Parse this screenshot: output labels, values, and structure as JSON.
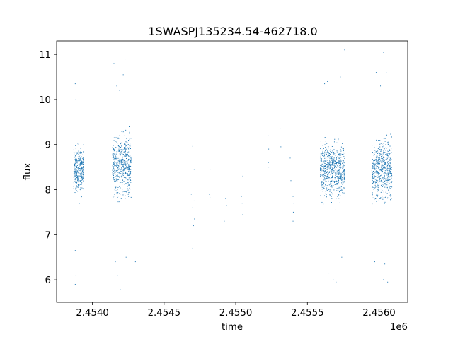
{
  "chart_data": {
    "type": "scatter",
    "title": "1SWASPJ135234.54-462718.0",
    "xlabel": "time",
    "ylabel": "flux",
    "x_offset_label": "1e6",
    "xlim": [
      2453750,
      2456200
    ],
    "ylim": [
      5.5,
      11.3
    ],
    "x_ticks": [
      2454000,
      2454500,
      2455000,
      2455500,
      2456000
    ],
    "x_tick_labels": [
      "2.4540",
      "2.4545",
      "2.4550",
      "2.4555",
      "2.4560"
    ],
    "y_ticks": [
      6,
      7,
      8,
      9,
      10,
      11
    ],
    "y_tick_labels": [
      "6",
      "7",
      "8",
      "9",
      "10",
      "11"
    ],
    "grid": false,
    "color": "#1f77b4",
    "series": [
      {
        "clusters": [
          {
            "x_range": [
              2453870,
              2453940
            ],
            "y_center": 8.45,
            "y_spread": 0.35,
            "count": 330
          },
          {
            "x_range": [
              2454140,
              2454270
            ],
            "y_center": 8.55,
            "y_spread": 0.45,
            "count": 520
          },
          {
            "x_range": [
              2455590,
              2455760
            ],
            "y_center": 8.45,
            "y_spread": 0.4,
            "count": 650
          },
          {
            "x_range": [
              2455950,
              2456090
            ],
            "y_center": 8.45,
            "y_spread": 0.42,
            "count": 560
          }
        ],
        "sparse_points": [
          [
            2454700,
            8.96
          ],
          [
            2454710,
            8.45
          ],
          [
            2454690,
            7.9
          ],
          [
            2454710,
            7.75
          ],
          [
            2454700,
            7.6
          ],
          [
            2454712,
            7.35
          ],
          [
            2454705,
            7.2
          ],
          [
            2454700,
            6.7
          ],
          [
            2454820,
            8.45
          ],
          [
            2454815,
            7.9
          ],
          [
            2454820,
            7.82
          ],
          [
            2454930,
            7.8
          ],
          [
            2454935,
            7.65
          ],
          [
            2454920,
            7.3
          ],
          [
            2455040,
            7.85
          ],
          [
            2455045,
            7.7
          ],
          [
            2455050,
            7.45
          ],
          [
            2455050,
            8.3
          ],
          [
            2455225,
            9.2
          ],
          [
            2455230,
            8.9
          ],
          [
            2455228,
            8.6
          ],
          [
            2455230,
            8.5
          ],
          [
            2455310,
            9.35
          ],
          [
            2455315,
            8.95
          ],
          [
            2455380,
            8.7
          ],
          [
            2455385,
            8.2
          ],
          [
            2455400,
            7.85
          ],
          [
            2455405,
            7.7
          ],
          [
            2455402,
            7.5
          ],
          [
            2455400,
            7.3
          ],
          [
            2455405,
            6.95
          ],
          [
            2453880,
            10.35
          ],
          [
            2453885,
            10.0
          ],
          [
            2453880,
            6.65
          ],
          [
            2453885,
            6.1
          ],
          [
            2453880,
            5.9
          ],
          [
            2454150,
            10.8
          ],
          [
            2454170,
            10.3
          ],
          [
            2454190,
            10.2
          ],
          [
            2454230,
            10.9
          ],
          [
            2454215,
            10.55
          ],
          [
            2454160,
            6.4
          ],
          [
            2454175,
            6.1
          ],
          [
            2454195,
            5.78
          ],
          [
            2454235,
            6.5
          ],
          [
            2454300,
            6.4
          ],
          [
            2455640,
            10.4
          ],
          [
            2455620,
            10.35
          ],
          [
            2455730,
            10.5
          ],
          [
            2455760,
            11.1
          ],
          [
            2455650,
            6.15
          ],
          [
            2455680,
            6.0
          ],
          [
            2455700,
            5.95
          ],
          [
            2455740,
            6.5
          ],
          [
            2455980,
            10.6
          ],
          [
            2456030,
            11.05
          ],
          [
            2456050,
            10.6
          ],
          [
            2456010,
            10.3
          ],
          [
            2455970,
            6.4
          ],
          [
            2456030,
            6.0
          ],
          [
            2456060,
            5.95
          ],
          [
            2456040,
            6.35
          ]
        ]
      }
    ]
  }
}
